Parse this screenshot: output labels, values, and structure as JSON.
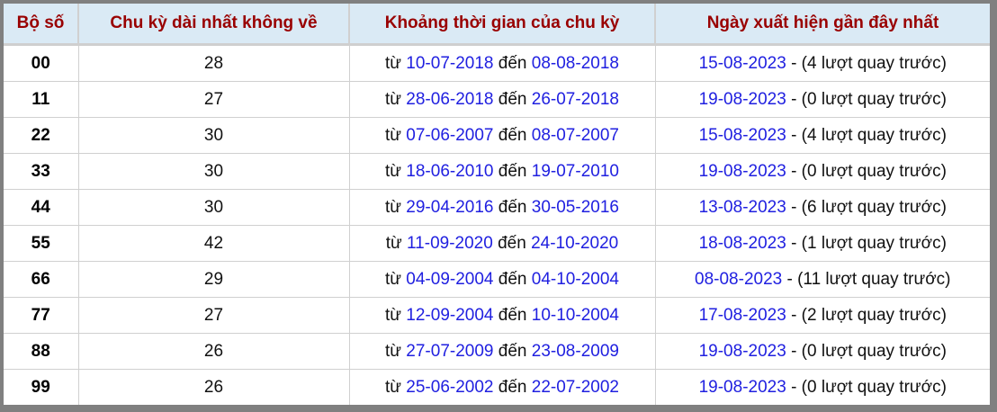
{
  "headers": [
    "Bộ số",
    "Chu kỳ dài nhất không về",
    "Khoảng thời gian của chu kỳ",
    "Ngày xuất hiện gần đây nhất"
  ],
  "labels": {
    "from": "từ",
    "to": "đến"
  },
  "colors": {
    "header_text": "#990000",
    "header_bg": "#daeaf5",
    "date": "#2020e0"
  },
  "rows": [
    {
      "pair": "00",
      "cycle": "28",
      "start": "10-07-2018",
      "end": "08-08-2018",
      "last": "15-08-2023",
      "ago": " - (4 lượt quay trước)"
    },
    {
      "pair": "11",
      "cycle": "27",
      "start": "28-06-2018",
      "end": "26-07-2018",
      "last": "19-08-2023",
      "ago": " - (0 lượt quay trước)"
    },
    {
      "pair": "22",
      "cycle": "30",
      "start": "07-06-2007",
      "end": "08-07-2007",
      "last": "15-08-2023",
      "ago": " - (4 lượt quay trước)"
    },
    {
      "pair": "33",
      "cycle": "30",
      "start": "18-06-2010",
      "end": "19-07-2010",
      "last": "19-08-2023",
      "ago": " - (0 lượt quay trước)"
    },
    {
      "pair": "44",
      "cycle": "30",
      "start": "29-04-2016",
      "end": "30-05-2016",
      "last": "13-08-2023",
      "ago": " - (6 lượt quay trước)"
    },
    {
      "pair": "55",
      "cycle": "42",
      "start": "11-09-2020",
      "end": "24-10-2020",
      "last": "18-08-2023",
      "ago": " - (1 lượt quay trước)"
    },
    {
      "pair": "66",
      "cycle": "29",
      "start": "04-09-2004",
      "end": "04-10-2004",
      "last": "08-08-2023",
      "ago": " - (11 lượt quay trước)"
    },
    {
      "pair": "77",
      "cycle": "27",
      "start": "12-09-2004",
      "end": "10-10-2004",
      "last": "17-08-2023",
      "ago": " - (2 lượt quay trước)"
    },
    {
      "pair": "88",
      "cycle": "26",
      "start": "27-07-2009",
      "end": "23-08-2009",
      "last": "19-08-2023",
      "ago": " - (0 lượt quay trước)"
    },
    {
      "pair": "99",
      "cycle": "26",
      "start": "25-06-2002",
      "end": "22-07-2002",
      "last": "19-08-2023",
      "ago": " - (0 lượt quay trước)"
    }
  ]
}
